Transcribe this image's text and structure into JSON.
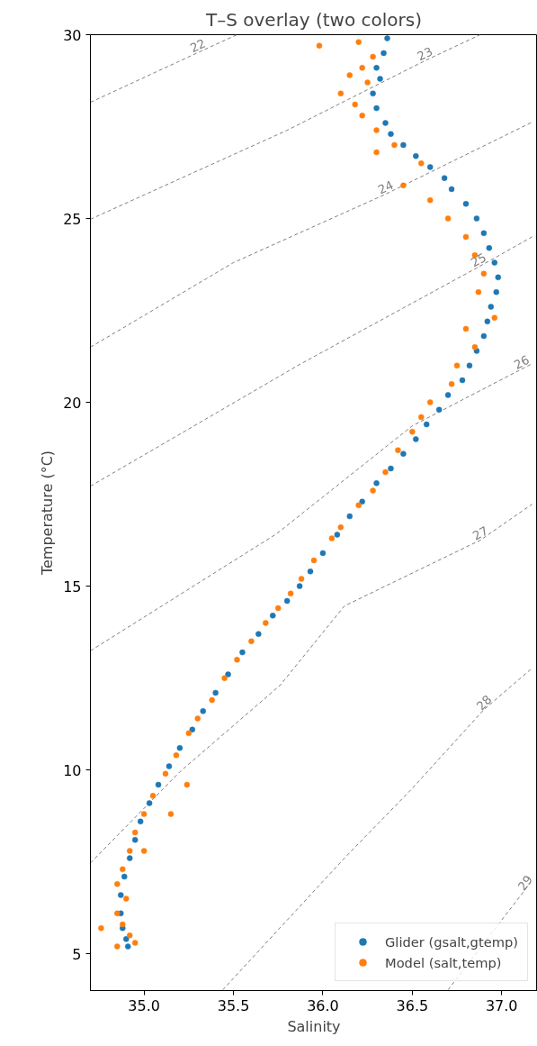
{
  "chart_data": {
    "type": "scatter",
    "title": "T–S overlay (two colors)",
    "xlabel": "Salinity",
    "ylabel": "Temperature (°C)",
    "xlim": [
      34.7,
      37.2
    ],
    "ylim": [
      4,
      30
    ],
    "xticks": [
      {
        "value": 35,
        "label": "35.0"
      },
      {
        "value": 35.5,
        "label": "35.5"
      },
      {
        "value": 36,
        "label": "36.0"
      },
      {
        "value": 36.5,
        "label": "36.5"
      },
      {
        "value": 37,
        "label": "37.0"
      }
    ],
    "yticks": [
      5,
      10,
      15,
      20,
      25,
      30
    ],
    "grid": false,
    "legend": "bottom right",
    "marker": "circle",
    "series": [
      {
        "type": "line",
        "name": "22",
        "color": "#808080",
        "line_style": "dashed",
        "marker": "none",
        "x": [
          34.7,
          35.3,
          35.52
        ],
        "values": [
          28.16,
          29.51,
          30
        ]
      },
      {
        "type": "line",
        "name": "23",
        "color": "#808080",
        "line_style": "dashed",
        "marker": "none",
        "x": [
          34.7,
          35.8,
          36.57,
          36.88
        ],
        "values": [
          24.98,
          27.4,
          29.29,
          30
        ]
      },
      {
        "type": "line",
        "name": "24",
        "color": "#808080",
        "line_style": "dashed",
        "marker": "none",
        "x": [
          34.7,
          35.5,
          36.35,
          37.17
        ],
        "values": [
          21.5,
          23.8,
          25.66,
          27.62
        ]
      },
      {
        "type": "line",
        "name": "25",
        "color": "#808080",
        "line_style": "dashed",
        "marker": "none",
        "x": [
          34.7,
          35.87,
          36.87,
          37.17
        ],
        "values": [
          17.72,
          21.03,
          23.68,
          24.5
        ]
      },
      {
        "type": "line",
        "name": "26",
        "color": "#808080",
        "line_style": "dashed",
        "marker": "none",
        "x": [
          34.7,
          35.74,
          36.5,
          37.11,
          37.17
        ],
        "values": [
          13.24,
          16.42,
          19.36,
          20.9,
          21.05
        ]
      },
      {
        "type": "line",
        "name": "27",
        "color": "#808080",
        "line_style": "dashed",
        "marker": "none",
        "x": [
          34.7,
          35.2,
          35.76,
          36.12,
          36.88,
          37.17
        ],
        "values": [
          7.47,
          9.95,
          12.3,
          14.46,
          16.25,
          17.23
        ]
      },
      {
        "type": "line",
        "name": "28",
        "color": "#808080",
        "line_style": "dashed",
        "marker": "none",
        "x": [
          35.44,
          36.12,
          36.5,
          36.9,
          37.17
        ],
        "values": [
          4.02,
          7.6,
          9.5,
          11.64,
          12.77
        ]
      },
      {
        "type": "line",
        "name": "29",
        "color": "#808080",
        "line_style": "dashed",
        "marker": "none",
        "x": [
          36.7,
          37.13,
          37.17
        ],
        "values": [
          4.02,
          6.74,
          7.0
        ]
      },
      {
        "name": "Glider (gsalt,gtemp)",
        "color": "#1f77b4",
        "x": [
          36.36,
          36.34,
          36.3,
          36.32,
          36.28,
          36.3,
          36.35,
          36.38,
          36.45,
          36.52,
          36.6,
          36.68,
          36.72,
          36.8,
          36.86,
          36.9,
          36.93,
          36.96,
          36.98,
          36.97,
          36.94,
          36.92,
          36.9,
          36.86,
          36.82,
          36.78,
          36.7,
          36.65,
          36.58,
          36.52,
          36.45,
          36.38,
          36.3,
          36.22,
          36.15,
          36.08,
          36.0,
          35.93,
          35.87,
          35.8,
          35.72,
          35.64,
          35.55,
          35.47,
          35.4,
          35.33,
          35.27,
          35.2,
          35.14,
          35.08,
          35.03,
          34.98,
          34.95,
          34.92,
          34.89,
          34.87,
          34.87,
          34.88,
          34.9,
          34.91
        ],
        "values": [
          29.9,
          29.5,
          29.1,
          28.8,
          28.4,
          28.0,
          27.6,
          27.3,
          27.0,
          26.7,
          26.4,
          26.1,
          25.8,
          25.4,
          25.0,
          24.6,
          24.2,
          23.8,
          23.4,
          23.0,
          22.6,
          22.2,
          21.8,
          21.4,
          21.0,
          20.6,
          20.2,
          19.8,
          19.4,
          19.0,
          18.6,
          18.2,
          17.8,
          17.3,
          16.9,
          16.4,
          15.9,
          15.4,
          15.0,
          14.6,
          14.2,
          13.7,
          13.2,
          12.6,
          12.1,
          11.6,
          11.1,
          10.6,
          10.1,
          9.6,
          9.1,
          8.6,
          8.1,
          7.6,
          7.1,
          6.6,
          6.1,
          5.7,
          5.4,
          5.2
        ]
      },
      {
        "name": "Model (salt,temp)",
        "color": "#ff7f0e",
        "x": [
          36.2,
          36.28,
          36.22,
          36.15,
          36.25,
          35.98,
          36.1,
          36.18,
          36.22,
          36.3,
          36.4,
          36.3,
          36.55,
          36.45,
          36.6,
          36.7,
          36.8,
          36.85,
          36.9,
          36.87,
          36.96,
          36.8,
          36.85,
          36.75,
          36.72,
          36.6,
          36.55,
          36.5,
          36.42,
          36.35,
          36.28,
          36.2,
          36.1,
          36.05,
          35.95,
          35.88,
          35.82,
          35.75,
          35.68,
          35.6,
          35.52,
          35.45,
          35.38,
          35.3,
          35.25,
          35.18,
          35.12,
          35.24,
          35.05,
          35.0,
          35.15,
          34.95,
          34.92,
          35.0,
          34.88,
          34.85,
          34.9,
          34.85,
          34.88,
          34.92,
          34.95,
          34.76,
          34.85
        ],
        "values": [
          29.8,
          29.4,
          29.1,
          28.9,
          28.7,
          29.7,
          28.4,
          28.1,
          27.8,
          27.4,
          27.0,
          26.8,
          26.5,
          25.9,
          25.5,
          25.0,
          24.5,
          24.0,
          23.5,
          23.0,
          22.3,
          22.0,
          21.5,
          21.0,
          20.5,
          20.0,
          19.6,
          19.2,
          18.7,
          18.1,
          17.6,
          17.2,
          16.6,
          16.3,
          15.7,
          15.2,
          14.8,
          14.4,
          14.0,
          13.5,
          13.0,
          12.5,
          11.9,
          11.4,
          11.0,
          10.4,
          9.9,
          9.6,
          9.3,
          8.8,
          8.8,
          8.3,
          7.8,
          7.8,
          7.3,
          6.9,
          6.5,
          6.1,
          5.8,
          5.5,
          5.3,
          5.7,
          5.2
        ]
      }
    ]
  }
}
